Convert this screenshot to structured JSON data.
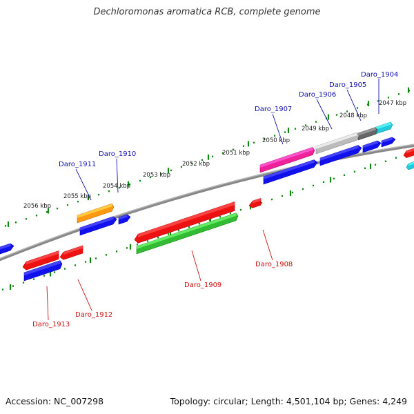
{
  "title": "Dechloromonas aromatica RCB, complete genome",
  "footer": {
    "accession": "Accession: NC_007298",
    "summary": "Topology: circular; Length: 4,501,104 bp; Genes: 4,249"
  },
  "colors": {
    "backbone": "#888888",
    "scale_ticks": "#118811",
    "upper_label": "#1111aa",
    "lower_label": "#cc1111"
  },
  "scale_labels": [
    "2047 kbp",
    "2048 kbp",
    "2049 kbp",
    "2050 kbp",
    "2051 kbp",
    "2052 kbp",
    "2053 kbp",
    "2054 kbp",
    "2055 kbp",
    "2056 kbp"
  ],
  "gene_labels": [
    {
      "text": "Daro_1904",
      "side": "upper"
    },
    {
      "text": "Daro_1905",
      "side": "upper"
    },
    {
      "text": "Daro_1906",
      "side": "upper"
    },
    {
      "text": "Daro_1907",
      "side": "upper"
    },
    {
      "text": "Daro_1910",
      "side": "upper"
    },
    {
      "text": "Daro_1911",
      "side": "upper"
    },
    {
      "text": "Daro_1908",
      "side": "lower"
    },
    {
      "text": "Daro_1909",
      "side": "lower"
    },
    {
      "text": "Daro_1912",
      "side": "lower"
    },
    {
      "text": "Daro_1913",
      "side": "lower"
    }
  ],
  "features": [
    {
      "name": "gene-1904-cyan",
      "color": "#22ccdd"
    },
    {
      "name": "gene-1905-darkgrey",
      "color": "#666666"
    },
    {
      "name": "gene-1906-lightgrey",
      "color": "#bbbbbb"
    },
    {
      "name": "gene-1907-magenta",
      "color": "#ee2299"
    },
    {
      "name": "gene-1908-red",
      "color": "#ee1111"
    },
    {
      "name": "gene-1909-red",
      "color": "#ee1111"
    },
    {
      "name": "gene-1909-green",
      "color": "#33bb33"
    },
    {
      "name": "gene-1910-blue",
      "color": "#1111ee"
    },
    {
      "name": "gene-1911-orange",
      "color": "#ff9911"
    },
    {
      "name": "gene-1912-red",
      "color": "#ee1111"
    },
    {
      "name": "gene-1913-red",
      "color": "#ee1111"
    },
    {
      "name": "gene-1913-blue",
      "color": "#1111ee"
    }
  ]
}
